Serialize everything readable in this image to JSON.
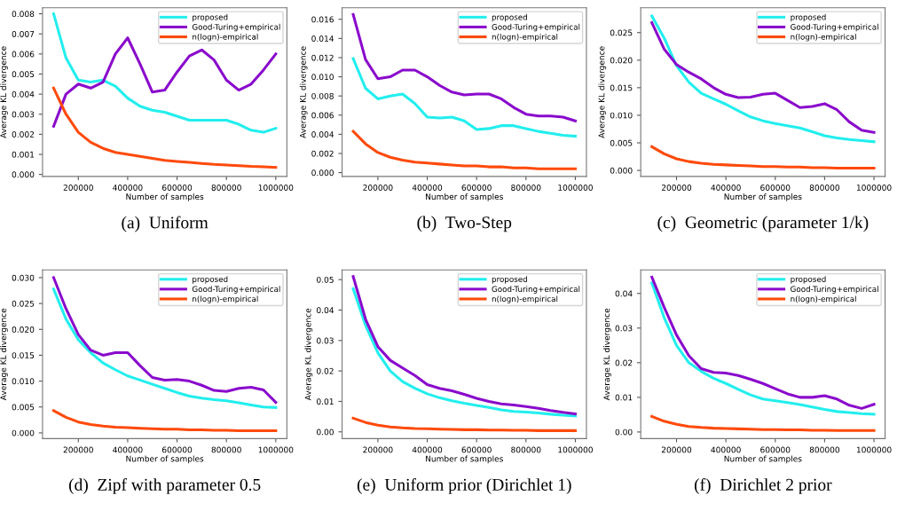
{
  "chart_data": [
    {
      "type": "line",
      "title": "(a)  Uniform",
      "xlabel": "Number of samples",
      "ylabel": "Average KL divergence",
      "legend": "top right",
      "grid": false,
      "x": [
        100000,
        150000,
        200000,
        250000,
        300000,
        350000,
        400000,
        450000,
        500000,
        550000,
        600000,
        650000,
        700000,
        750000,
        800000,
        850000,
        900000,
        950000,
        1000000
      ],
      "xlim": [
        55000,
        1045000
      ],
      "xticks": [
        200000,
        400000,
        600000,
        800000,
        1000000
      ],
      "ylim": [
        -0.0001,
        0.0083
      ],
      "yticks": [
        {
          "value": 0,
          "label": "0.000"
        },
        {
          "value": 0.001,
          "label": "0.001"
        },
        {
          "value": 0.002,
          "label": "0.002"
        },
        {
          "value": 0.003,
          "label": "0.003"
        },
        {
          "value": 0.004,
          "label": "0.004"
        },
        {
          "value": 0.005,
          "label": "0.005"
        },
        {
          "value": 0.006,
          "label": "0.006"
        },
        {
          "value": 0.007,
          "label": "0.007"
        },
        {
          "value": 0.008,
          "label": "0.008"
        }
      ],
      "series": [
        {
          "name": "proposed",
          "color": "#22eeee",
          "values": [
            0.008,
            0.0058,
            0.0047,
            0.0046,
            0.0047,
            0.0044,
            0.0038,
            0.0034,
            0.0032,
            0.0031,
            0.0029,
            0.0027,
            0.0027,
            0.0027,
            0.0027,
            0.0025,
            0.0022,
            0.0021,
            0.0023
          ]
        },
        {
          "name": "Good-Turing+empirical",
          "color": "#8a0acc",
          "values": [
            0.0024,
            0.004,
            0.0045,
            0.0043,
            0.0046,
            0.006,
            0.0068,
            0.0055,
            0.0041,
            0.0042,
            0.0051,
            0.0059,
            0.0062,
            0.0057,
            0.0047,
            0.0042,
            0.0045,
            0.0052,
            0.006
          ]
        },
        {
          "name": "n(logn)-empirical",
          "color": "#ff4a0a",
          "values": [
            0.0043,
            0.003,
            0.0021,
            0.0016,
            0.0013,
            0.0011,
            0.001,
            0.0009,
            0.0008,
            0.0007,
            0.00065,
            0.0006,
            0.00055,
            0.0005,
            0.00047,
            0.00044,
            0.0004,
            0.00038,
            0.00035
          ]
        }
      ]
    },
    {
      "type": "line",
      "title": "(b)  Two-Step",
      "xlabel": "Number of samples",
      "ylabel": "Average KL divergence",
      "legend": "top right",
      "grid": false,
      "x": [
        100000,
        150000,
        200000,
        250000,
        300000,
        350000,
        400000,
        450000,
        500000,
        550000,
        600000,
        650000,
        700000,
        750000,
        800000,
        850000,
        900000,
        950000,
        1000000
      ],
      "xlim": [
        55000,
        1045000
      ],
      "xticks": [
        200000,
        400000,
        600000,
        800000,
        1000000
      ],
      "ylim": [
        -0.0004,
        0.0172
      ],
      "yticks": [
        {
          "value": 0,
          "label": "0.000"
        },
        {
          "value": 0.002,
          "label": "0.002"
        },
        {
          "value": 0.004,
          "label": "0.004"
        },
        {
          "value": 0.006,
          "label": "0.006"
        },
        {
          "value": 0.008,
          "label": "0.008"
        },
        {
          "value": 0.01,
          "label": "0.010"
        },
        {
          "value": 0.012,
          "label": "0.012"
        },
        {
          "value": 0.014,
          "label": "0.014"
        },
        {
          "value": 0.016,
          "label": "0.016"
        }
      ],
      "series": [
        {
          "name": "proposed",
          "color": "#22eeee",
          "values": [
            0.0119,
            0.0088,
            0.0077,
            0.008,
            0.0082,
            0.0072,
            0.0058,
            0.0057,
            0.0058,
            0.0054,
            0.0045,
            0.0046,
            0.0049,
            0.0049,
            0.0046,
            0.0043,
            0.0041,
            0.0039,
            0.0038
          ]
        },
        {
          "name": "Good-Turing+empirical",
          "color": "#8a0acc",
          "values": [
            0.0165,
            0.0118,
            0.0098,
            0.01,
            0.0107,
            0.0107,
            0.01,
            0.0091,
            0.0084,
            0.0081,
            0.0082,
            0.0082,
            0.0077,
            0.0068,
            0.0061,
            0.0059,
            0.0059,
            0.0058,
            0.0054
          ]
        },
        {
          "name": "n(logn)-empirical",
          "color": "#ff4a0a",
          "values": [
            0.0043,
            0.003,
            0.0021,
            0.0016,
            0.0013,
            0.0011,
            0.001,
            0.0009,
            0.0008,
            0.0007,
            0.0007,
            0.0006,
            0.0006,
            0.0005,
            0.0005,
            0.0004,
            0.0004,
            0.0004,
            0.0004
          ]
        }
      ]
    },
    {
      "type": "line",
      "title": "(c)  Geometric (parameter 1/k)",
      "xlabel": "Number of samples",
      "ylabel": "Average KL divergence",
      "legend": "top right",
      "grid": false,
      "x": [
        100000,
        150000,
        200000,
        250000,
        300000,
        350000,
        400000,
        450000,
        500000,
        550000,
        600000,
        650000,
        700000,
        750000,
        800000,
        850000,
        900000,
        950000,
        1000000
      ],
      "xlim": [
        55000,
        1045000
      ],
      "xticks": [
        200000,
        400000,
        600000,
        800000,
        1000000
      ],
      "ylim": [
        -0.0011,
        0.0295
      ],
      "yticks": [
        {
          "value": 0,
          "label": "0.000"
        },
        {
          "value": 0.005,
          "label": "0.005"
        },
        {
          "value": 0.01,
          "label": "0.010"
        },
        {
          "value": 0.015,
          "label": "0.015"
        },
        {
          "value": 0.02,
          "label": "0.020"
        },
        {
          "value": 0.025,
          "label": "0.025"
        }
      ],
      "series": [
        {
          "name": "proposed",
          "color": "#22eeee",
          "values": [
            0.028,
            0.024,
            0.019,
            0.016,
            0.014,
            0.013,
            0.012,
            0.0108,
            0.0097,
            0.009,
            0.0085,
            0.0081,
            0.0077,
            0.007,
            0.0063,
            0.0059,
            0.0056,
            0.0054,
            0.0052
          ]
        },
        {
          "name": "Good-Turing+empirical",
          "color": "#8a0acc",
          "values": [
            0.0268,
            0.022,
            0.0192,
            0.0178,
            0.0166,
            0.015,
            0.0138,
            0.0132,
            0.0133,
            0.0138,
            0.014,
            0.0127,
            0.0114,
            0.0116,
            0.0121,
            0.011,
            0.0088,
            0.0073,
            0.0069
          ]
        },
        {
          "name": "n(logn)-empirical",
          "color": "#ff4a0a",
          "values": [
            0.0043,
            0.003,
            0.0021,
            0.0016,
            0.0013,
            0.0011,
            0.001,
            0.0009,
            0.0008,
            0.0007,
            0.0007,
            0.0006,
            0.0006,
            0.0005,
            0.0005,
            0.0004,
            0.0004,
            0.0004,
            0.0004
          ]
        }
      ]
    },
    {
      "type": "line",
      "title": "(d)  Zipf with parameter 0.5",
      "xlabel": "Number of samples",
      "ylabel": "Average KL divergence",
      "legend": "top right",
      "grid": false,
      "x": [
        100000,
        150000,
        200000,
        250000,
        300000,
        350000,
        400000,
        450000,
        500000,
        550000,
        600000,
        650000,
        700000,
        750000,
        800000,
        850000,
        900000,
        950000,
        1000000
      ],
      "xlim": [
        55000,
        1045000
      ],
      "xticks": [
        200000,
        400000,
        600000,
        800000,
        1000000
      ],
      "ylim": [
        -0.0011,
        0.0315
      ],
      "yticks": [
        {
          "value": 0,
          "label": "0.000"
        },
        {
          "value": 0.005,
          "label": "0.005"
        },
        {
          "value": 0.01,
          "label": "0.010"
        },
        {
          "value": 0.015,
          "label": "0.015"
        },
        {
          "value": 0.02,
          "label": "0.020"
        },
        {
          "value": 0.025,
          "label": "0.025"
        },
        {
          "value": 0.03,
          "label": "0.030"
        }
      ],
      "series": [
        {
          "name": "proposed",
          "color": "#22eeee",
          "values": [
            0.0278,
            0.022,
            0.018,
            0.0155,
            0.0135,
            0.0122,
            0.011,
            0.0102,
            0.0094,
            0.0086,
            0.0078,
            0.0071,
            0.0067,
            0.0064,
            0.0062,
            0.0058,
            0.0054,
            0.005,
            0.0049
          ]
        },
        {
          "name": "Good-Turing+empirical",
          "color": "#8a0acc",
          "values": [
            0.03,
            0.024,
            0.019,
            0.016,
            0.015,
            0.0155,
            0.0155,
            0.013,
            0.0107,
            0.0102,
            0.0103,
            0.01,
            0.0092,
            0.0082,
            0.008,
            0.0086,
            0.0088,
            0.0083,
            0.0059
          ]
        },
        {
          "name": "n(logn)-empirical",
          "color": "#ff4a0a",
          "values": [
            0.0043,
            0.003,
            0.0021,
            0.0016,
            0.0013,
            0.0011,
            0.001,
            0.0009,
            0.0008,
            0.0007,
            0.0007,
            0.0006,
            0.0006,
            0.0005,
            0.0005,
            0.0004,
            0.0004,
            0.0004,
            0.0004
          ]
        }
      ]
    },
    {
      "type": "line",
      "title": "(e)  Uniform prior (Dirichlet 1)",
      "xlabel": "Number of samples",
      "ylabel": "Average KL divergence",
      "legend": "top right",
      "grid": false,
      "x": [
        100000,
        150000,
        200000,
        250000,
        300000,
        350000,
        400000,
        450000,
        500000,
        550000,
        600000,
        650000,
        700000,
        750000,
        800000,
        850000,
        900000,
        950000,
        1000000
      ],
      "xlim": [
        55000,
        1045000
      ],
      "xticks": [
        200000,
        400000,
        600000,
        800000,
        1000000
      ],
      "ylim": [
        -0.0022,
        0.0532
      ],
      "yticks": [
        {
          "value": 0,
          "label": "0.00"
        },
        {
          "value": 0.01,
          "label": "0.01"
        },
        {
          "value": 0.02,
          "label": "0.02"
        },
        {
          "value": 0.03,
          "label": "0.03"
        },
        {
          "value": 0.04,
          "label": "0.04"
        },
        {
          "value": 0.05,
          "label": "0.05"
        }
      ],
      "series": [
        {
          "name": "proposed",
          "color": "#22eeee",
          "values": [
            0.047,
            0.035,
            0.026,
            0.02,
            0.0165,
            0.0143,
            0.0125,
            0.0112,
            0.0102,
            0.0094,
            0.0087,
            0.008,
            0.0072,
            0.0067,
            0.0065,
            0.0062,
            0.0058,
            0.0055,
            0.0052
          ]
        },
        {
          "name": "Good-Turing+empirical",
          "color": "#8a0acc",
          "values": [
            0.051,
            0.037,
            0.028,
            0.0235,
            0.021,
            0.0185,
            0.0155,
            0.0143,
            0.0135,
            0.0123,
            0.011,
            0.01,
            0.0092,
            0.0088,
            0.0083,
            0.0077,
            0.007,
            0.0064,
            0.0059
          ]
        },
        {
          "name": "n(logn)-empirical",
          "color": "#ff4a0a",
          "values": [
            0.0045,
            0.0031,
            0.0022,
            0.0016,
            0.0013,
            0.0011,
            0.001,
            0.0009,
            0.0008,
            0.0007,
            0.0007,
            0.0006,
            0.0006,
            0.0005,
            0.0005,
            0.0004,
            0.0004,
            0.0004,
            0.0004
          ]
        }
      ]
    },
    {
      "type": "line",
      "title": "(f)  Dirichlet 2 prior",
      "xlabel": "Number of samples",
      "ylabel": "Average KL divergence",
      "legend": "top right",
      "grid": false,
      "x": [
        100000,
        150000,
        200000,
        250000,
        300000,
        350000,
        400000,
        450000,
        500000,
        550000,
        600000,
        650000,
        700000,
        750000,
        800000,
        850000,
        900000,
        950000,
        1000000
      ],
      "xlim": [
        55000,
        1045000
      ],
      "xticks": [
        200000,
        400000,
        600000,
        800000,
        1000000
      ],
      "ylim": [
        -0.0019,
        0.0468
      ],
      "yticks": [
        {
          "value": 0,
          "label": "0.00"
        },
        {
          "value": 0.01,
          "label": "0.01"
        },
        {
          "value": 0.02,
          "label": "0.02"
        },
        {
          "value": 0.03,
          "label": "0.03"
        },
        {
          "value": 0.04,
          "label": "0.04"
        }
      ],
      "series": [
        {
          "name": "proposed",
          "color": "#22eeee",
          "values": [
            0.043,
            0.033,
            0.025,
            0.02,
            0.0175,
            0.0155,
            0.014,
            0.0123,
            0.0107,
            0.0095,
            0.009,
            0.0085,
            0.0079,
            0.0072,
            0.0065,
            0.0059,
            0.0056,
            0.0053,
            0.0051
          ]
        },
        {
          "name": "Good-Turing+empirical",
          "color": "#8a0acc",
          "values": [
            0.0447,
            0.036,
            0.028,
            0.022,
            0.0183,
            0.0172,
            0.017,
            0.0163,
            0.0152,
            0.014,
            0.0125,
            0.011,
            0.01,
            0.01,
            0.0105,
            0.0095,
            0.0077,
            0.0068,
            0.008
          ]
        },
        {
          "name": "n(logn)-empirical",
          "color": "#ff4a0a",
          "values": [
            0.0045,
            0.0031,
            0.0022,
            0.0016,
            0.0013,
            0.0011,
            0.001,
            0.0009,
            0.0008,
            0.0007,
            0.0007,
            0.0006,
            0.0006,
            0.0005,
            0.0005,
            0.0004,
            0.0004,
            0.0004,
            0.0004
          ]
        }
      ]
    }
  ]
}
